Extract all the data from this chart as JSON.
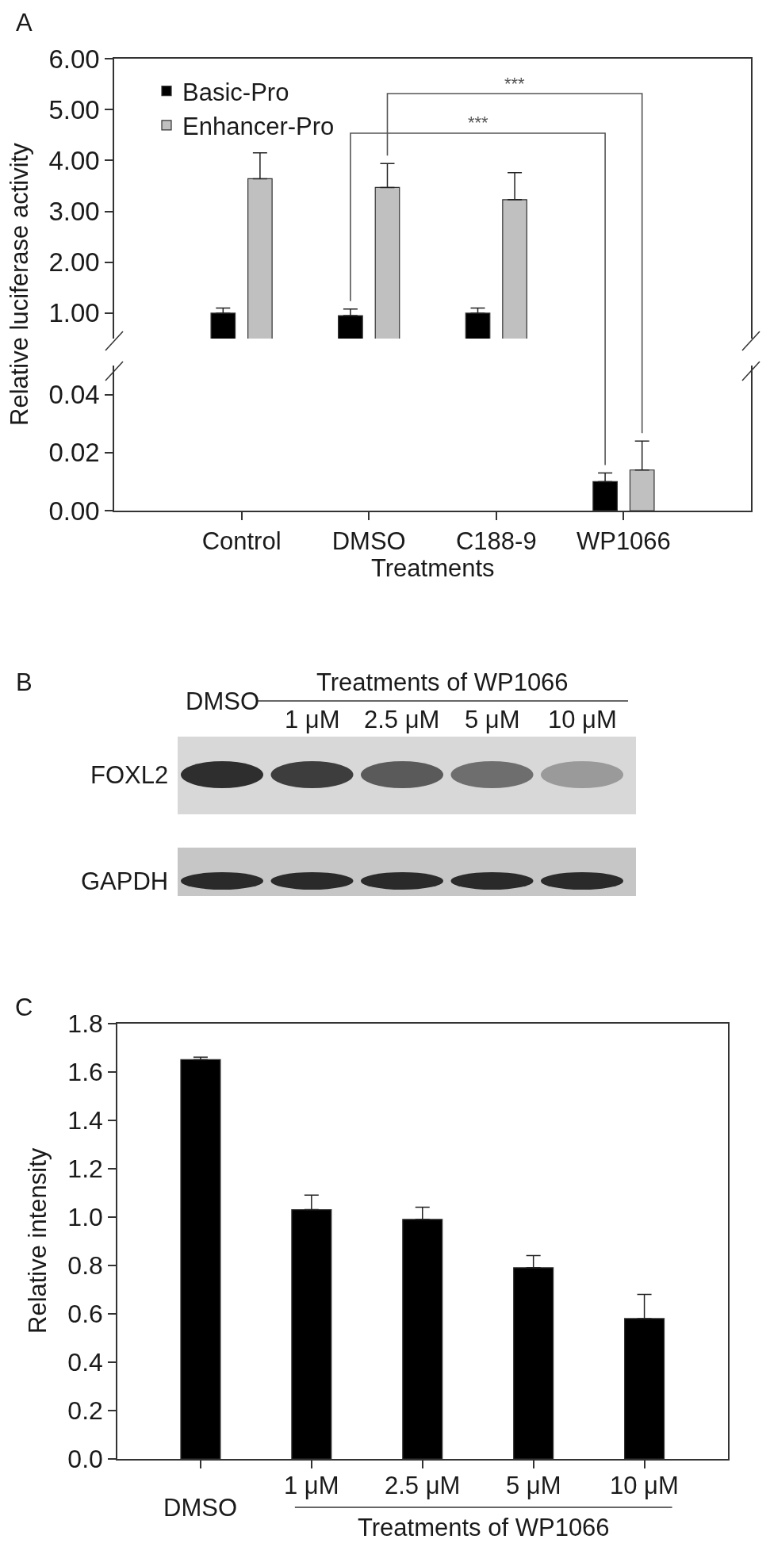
{
  "chart_data": [
    {
      "type": "bar",
      "title": "A",
      "ylabel": "Relative luciferase activity",
      "categories": [
        null,
        null,
        null,
        null
      ],
      "series": [
        {
          "name": "Basic-Pro",
          "color": "#000000",
          "values": [
            1.0,
            0.95,
            1.0,
            null
          ],
          "errors": [
            0.1,
            0.13,
            0.1,
            null
          ]
        },
        {
          "name": "Enhancer-Pro",
          "color": "#c0c0c0",
          "values": [
            3.64,
            3.47,
            3.23,
            null
          ],
          "errors": [
            0.51,
            0.47,
            0.53,
            null
          ]
        }
      ],
      "ylim": [
        0.5,
        6.0
      ],
      "yticks": [
        {
          "value": 1,
          "label": "1.00"
        },
        {
          "value": 2,
          "label": "2.00"
        },
        {
          "value": 3,
          "label": "3.00"
        },
        {
          "value": 4,
          "label": "4.00"
        },
        {
          "value": 5,
          "label": "5.00"
        },
        {
          "value": 6,
          "label": "6.00"
        }
      ],
      "legend": "top left",
      "annotations": [
        "***",
        "***"
      ]
    },
    {
      "type": "bar",
      "xlabel": "Treatments",
      "categories": [
        "Control",
        "DMSO",
        "C188-9",
        "WP1066"
      ],
      "series": [
        {
          "color": "#000000",
          "values": [
            null,
            null,
            null,
            0.01
          ],
          "errors": [
            null,
            null,
            null,
            0.003
          ]
        },
        {
          "color": "#c0c0c0",
          "values": [
            null,
            null,
            null,
            0.014
          ],
          "errors": [
            null,
            null,
            null,
            0.01
          ]
        }
      ],
      "ylim": [
        0,
        0.05
      ],
      "yticks": [
        {
          "value": 0,
          "label": "0.00"
        },
        0.02,
        0.04
      ]
    },
    {
      "type": "other",
      "title": "B",
      "categories": [
        "DMSO",
        "1 μM",
        "2.5 μM",
        "5 μM",
        "10 μM"
      ],
      "xlabel": "Treatments of WP1066",
      "y_categories": [
        "FOXL2",
        "GAPDH"
      ]
    },
    {
      "type": "bar",
      "title": "C",
      "ylabel": "Relative intensity",
      "xlabel": "Treatments of WP1066",
      "categories": [
        "DMSO",
        "1 μM",
        "2.5 μM",
        "5 μM",
        "10 μM"
      ],
      "series": [
        {
          "color": "#000000",
          "values": [
            1.65,
            1.03,
            0.99,
            0.79,
            0.58
          ],
          "errors": [
            0.01,
            0.06,
            0.05,
            0.05,
            0.1
          ]
        }
      ],
      "ylim": [
        0,
        1.8
      ],
      "yticks": [
        {
          "value": 0,
          "label": "0.0"
        },
        0.2,
        0.4,
        0.6,
        0.8,
        {
          "value": 1,
          "label": "1.0"
        },
        1.2,
        1.4,
        1.6,
        1.8
      ]
    }
  ]
}
